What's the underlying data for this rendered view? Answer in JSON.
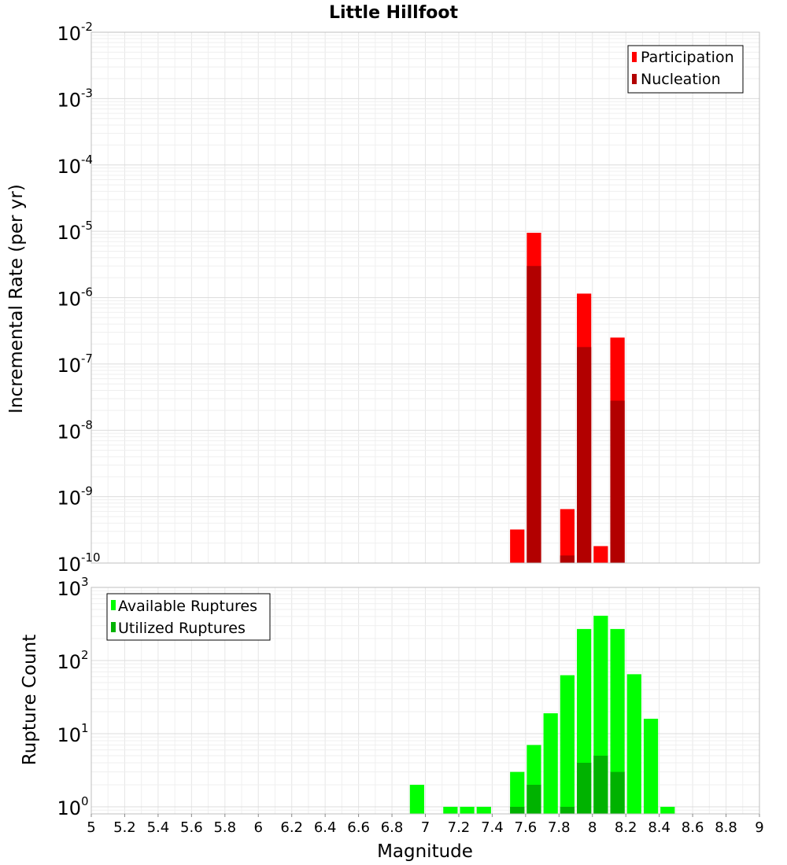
{
  "title": "Little Hillfoot",
  "chart_data": [
    {
      "type": "bar",
      "yscale": "log",
      "ylabel": "Incremental Rate (per yr)",
      "xlabel": "",
      "xlim": [
        5,
        9
      ],
      "ylim": [
        1e-10,
        0.01
      ],
      "y_tick_labels": [
        {
          "base": "10",
          "exp": "-10"
        },
        {
          "base": "10",
          "exp": "-9"
        },
        {
          "base": "10",
          "exp": "-8"
        },
        {
          "base": "10",
          "exp": "-7"
        },
        {
          "base": "10",
          "exp": "-6"
        },
        {
          "base": "10",
          "exp": "-5"
        },
        {
          "base": "10",
          "exp": "-4"
        },
        {
          "base": "10",
          "exp": "-3"
        },
        {
          "base": "10",
          "exp": "-2"
        }
      ],
      "legend_position": "top-right",
      "series": [
        {
          "name": "Participation",
          "color": "#ff0000",
          "points": [
            {
              "x": 7.55,
              "y": 3.2e-10
            },
            {
              "x": 7.65,
              "y": 9.5e-06
            },
            {
              "x": 7.85,
              "y": 6.5e-10
            },
            {
              "x": 7.95,
              "y": 1.15e-06
            },
            {
              "x": 8.05,
              "y": 1.8e-10
            },
            {
              "x": 8.15,
              "y": 2.5e-07
            }
          ]
        },
        {
          "name": "Nucleation",
          "color": "#b20000",
          "points": [
            {
              "x": 7.65,
              "y": 3e-06
            },
            {
              "x": 7.85,
              "y": 1.3e-10
            },
            {
              "x": 7.95,
              "y": 1.8e-07
            },
            {
              "x": 8.15,
              "y": 2.8e-08
            }
          ]
        }
      ]
    },
    {
      "type": "bar",
      "yscale": "log",
      "ylabel": "Rupture Count",
      "xlabel": "Magnitude",
      "xlim": [
        5,
        9
      ],
      "ylim": [
        0.8,
        1000
      ],
      "x_tick_labels": [
        "5",
        "5.2",
        "5.4",
        "5.6",
        "5.8",
        "6",
        "6.2",
        "6.4",
        "6.6",
        "6.8",
        "7",
        "7.2",
        "7.4",
        "7.6",
        "7.8",
        "8",
        "8.2",
        "8.4",
        "8.6",
        "8.8",
        "9"
      ],
      "y_tick_labels": [
        {
          "base": "10",
          "exp": "0"
        },
        {
          "base": "10",
          "exp": "1"
        },
        {
          "base": "10",
          "exp": "2"
        },
        {
          "base": "10",
          "exp": "3"
        }
      ],
      "legend_position": "top-left",
      "series": [
        {
          "name": "Available Ruptures",
          "color": "#00ff00",
          "points": [
            {
              "x": 6.95,
              "y": 2
            },
            {
              "x": 7.15,
              "y": 1
            },
            {
              "x": 7.25,
              "y": 1
            },
            {
              "x": 7.35,
              "y": 1
            },
            {
              "x": 7.55,
              "y": 3
            },
            {
              "x": 7.65,
              "y": 7
            },
            {
              "x": 7.75,
              "y": 19
            },
            {
              "x": 7.85,
              "y": 63
            },
            {
              "x": 7.95,
              "y": 270
            },
            {
              "x": 8.05,
              "y": 410
            },
            {
              "x": 8.15,
              "y": 270
            },
            {
              "x": 8.25,
              "y": 65
            },
            {
              "x": 8.35,
              "y": 16
            },
            {
              "x": 8.45,
              "y": 1
            }
          ]
        },
        {
          "name": "Utilized Ruptures",
          "color": "#00b200",
          "points": [
            {
              "x": 7.55,
              "y": 1
            },
            {
              "x": 7.65,
              "y": 2
            },
            {
              "x": 7.85,
              "y": 1
            },
            {
              "x": 7.95,
              "y": 4
            },
            {
              "x": 8.05,
              "y": 5
            },
            {
              "x": 8.15,
              "y": 3
            }
          ]
        }
      ]
    }
  ]
}
